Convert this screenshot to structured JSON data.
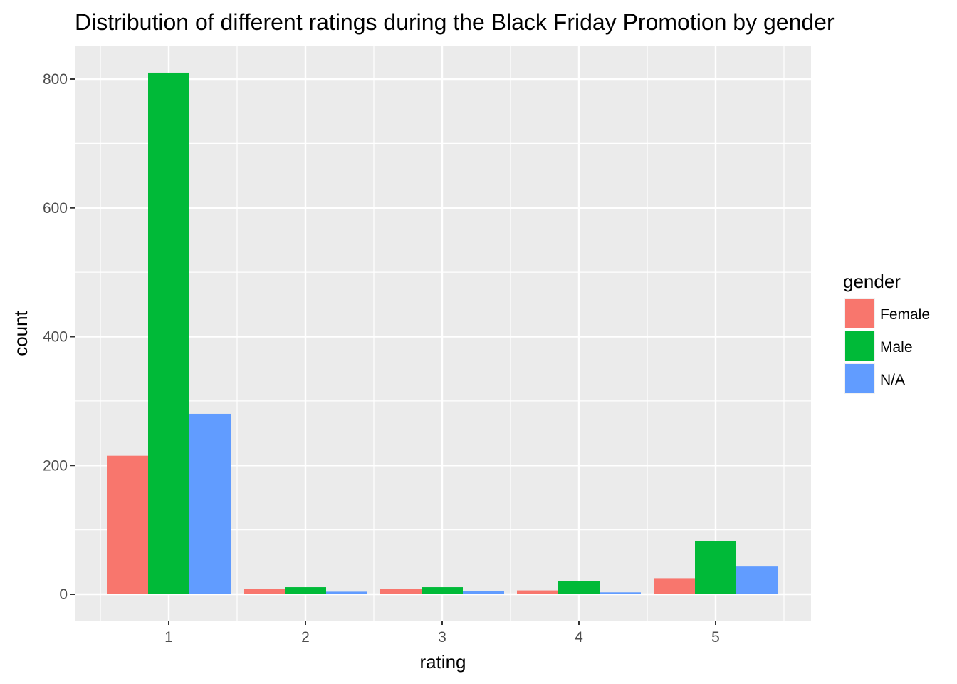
{
  "chart_data": {
    "type": "bar",
    "title": "Distribution of different ratings during the Black Friday Promotion by gender",
    "xlabel": "rating",
    "ylabel": "count",
    "categories": [
      "1",
      "2",
      "3",
      "4",
      "5"
    ],
    "yticks": [
      "0",
      "200",
      "400",
      "600",
      "800"
    ],
    "ylim": [
      -40,
      860
    ],
    "grid": true,
    "legend": {
      "title": "gender",
      "position": "right"
    },
    "series": [
      {
        "name": "Female",
        "color": "#F8766D",
        "values": [
          215,
          8,
          8,
          6,
          25
        ]
      },
      {
        "name": "Male",
        "color": "#00BA38",
        "values": [
          810,
          11,
          11,
          21,
          83
        ]
      },
      {
        "name": "N/A",
        "color": "#619CFF",
        "values": [
          280,
          4,
          5,
          3,
          43
        ]
      }
    ]
  }
}
